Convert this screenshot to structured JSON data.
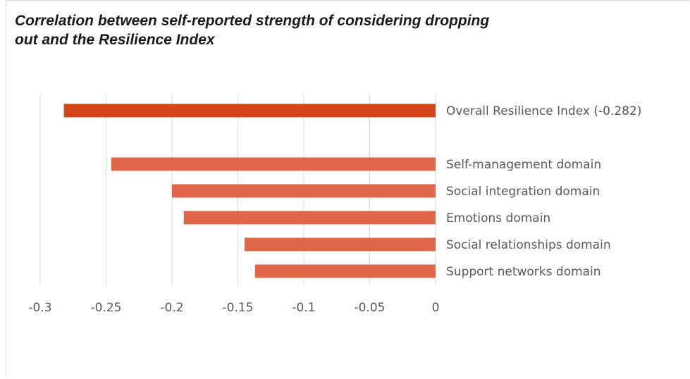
{
  "chart_data": {
    "type": "bar",
    "orientation": "horizontal",
    "title": "Correlation between self-reported strength of considering dropping out and the Resilience Index",
    "categories": [
      "Overall Resilience Index (-0.282)",
      "Self-management domain",
      "Social integration domain",
      "Emotions domain",
      "Social relationships domain",
      "Support networks domain"
    ],
    "values": [
      -0.282,
      -0.246,
      -0.2,
      -0.191,
      -0.145,
      -0.137
    ],
    "xlim": [
      -0.3,
      0
    ],
    "xticks": [
      "-0.3",
      "-0.25",
      "-0.2",
      "-0.15",
      "-0.1",
      "-0.05",
      "0"
    ],
    "xtick_values": [
      -0.3,
      -0.25,
      -0.2,
      -0.15,
      -0.1,
      -0.05,
      0
    ],
    "grid": true,
    "legend": "none",
    "colors": {
      "highlight": "#d24618",
      "bar": "#e0664a",
      "grid": "#d9d9d9",
      "text": "#595959"
    },
    "xlabel": "",
    "ylabel": ""
  }
}
